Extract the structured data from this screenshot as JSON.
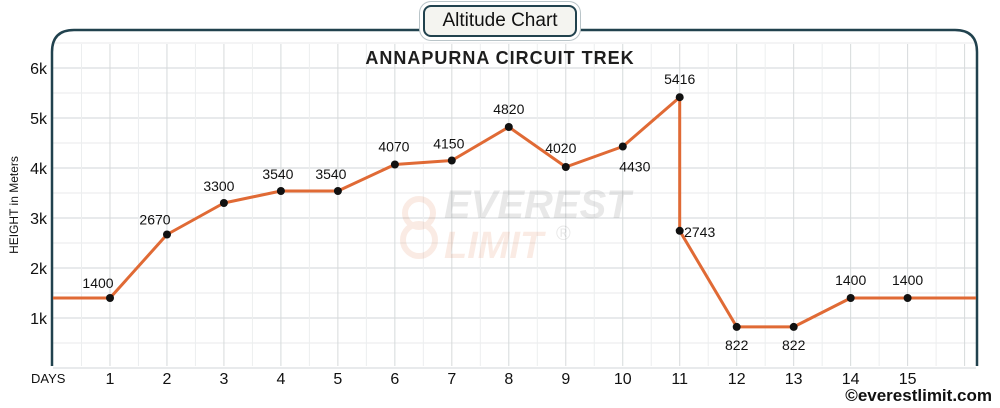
{
  "chart_data": {
    "type": "line",
    "badge": "Altitude Chart",
    "title": "ANNAPURNA CIRCUIT TREK",
    "xlabel": "DAYS",
    "ylabel": "HEIGHT in Meters",
    "x": [
      1,
      2,
      3,
      4,
      5,
      6,
      7,
      8,
      9,
      10,
      11,
      11,
      12,
      13,
      14,
      15
    ],
    "y": [
      1400,
      2670,
      3300,
      3540,
      3540,
      4070,
      4150,
      4820,
      4020,
      4430,
      5416,
      2743,
      822,
      822,
      1400,
      1400
    ],
    "labels": [
      "1400",
      "2670",
      "3300",
      "3540",
      "3540",
      "4070",
      "4150",
      "4820",
      "4020",
      "4430",
      "5416",
      "2743",
      "822",
      "822",
      "1400",
      "1400"
    ],
    "xticks": [
      "1",
      "2",
      "3",
      "4",
      "5",
      "6",
      "7",
      "8",
      "9",
      "10",
      "11",
      "12",
      "13",
      "14",
      "15"
    ],
    "yticks": [
      "1k",
      "2k",
      "3k",
      "4k",
      "5k",
      "6k"
    ],
    "ylim": [
      0,
      6500
    ],
    "xlim": [
      0,
      16.2
    ],
    "grid": true,
    "line_color": "#e06a35",
    "frame_color": "#21424e",
    "watermark": [
      "EVEREST",
      "LIMIT"
    ]
  },
  "footer": "©everestlimit.com"
}
